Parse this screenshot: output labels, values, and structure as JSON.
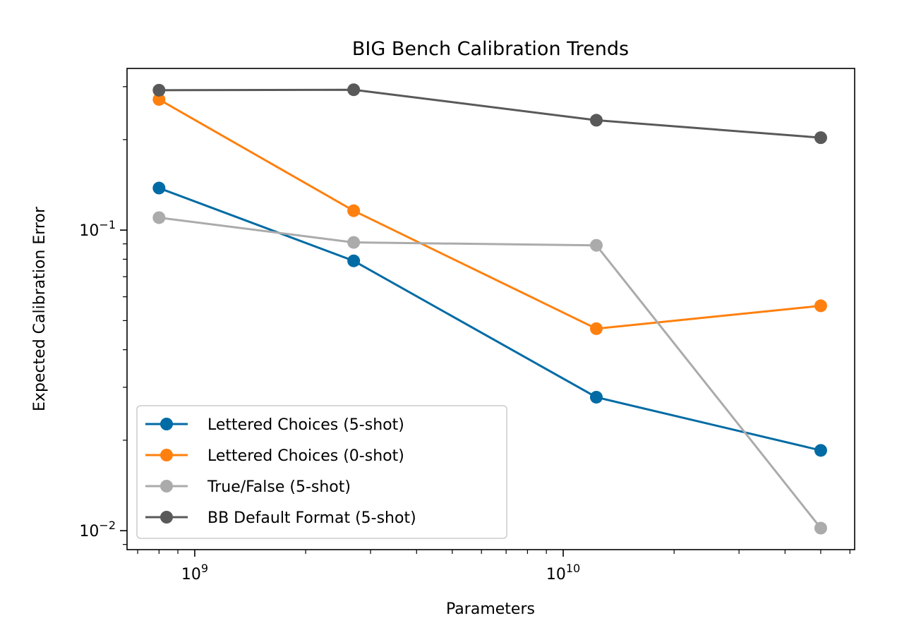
{
  "chart_data": {
    "type": "line",
    "title": "BIG Bench Calibration Trends",
    "xlabel": "Parameters",
    "ylabel": "Expected Calibration Error",
    "xscale": "log",
    "yscale": "log",
    "xlim": [
      655000000.0,
      61800000000.0
    ],
    "ylim": [
      0.00865,
      0.345
    ],
    "xticks": [
      {
        "value": 1000000000.0,
        "base": "10",
        "exp": "9"
      },
      {
        "value": 10000000000.0,
        "base": "10",
        "exp": "10"
      }
    ],
    "yticks": [
      {
        "value": 0.1,
        "base": "10",
        "exp": "−1"
      },
      {
        "value": 0.01,
        "base": "10",
        "exp": "−2"
      }
    ],
    "grid": false,
    "legend_position": "lower-left",
    "x": [
      800000000.0,
      2700000000.0,
      12300000000.0,
      50000000000.0
    ],
    "series": [
      {
        "name": "Lettered Choices (5-shot)",
        "color": "#006BA4",
        "values": [
          0.138,
          0.079,
          0.0278,
          0.0185
        ]
      },
      {
        "name": "Lettered Choices (0-shot)",
        "color": "#FF800E",
        "values": [
          0.272,
          0.116,
          0.047,
          0.056
        ]
      },
      {
        "name": "True/False (5-shot)",
        "color": "#ABABAB",
        "values": [
          0.11,
          0.091,
          0.089,
          0.0102
        ]
      },
      {
        "name": "BB Default Format (5-shot)",
        "color": "#595959",
        "values": [
          0.292,
          0.293,
          0.232,
          0.203
        ]
      }
    ]
  }
}
